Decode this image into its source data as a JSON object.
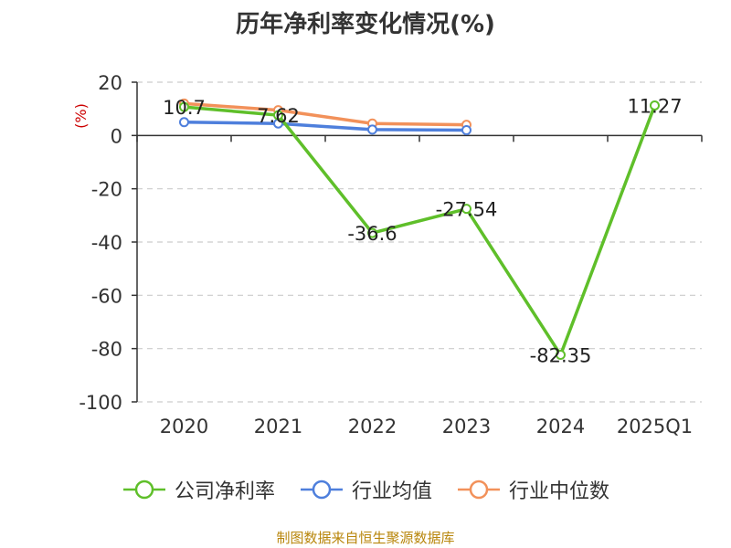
{
  "chart_data": {
    "type": "line",
    "title": "历年净利率变化情况(%)",
    "ylabel": "(%)",
    "xlabel": "",
    "categories": [
      "2020",
      "2021",
      "2022",
      "2023",
      "2024",
      "2025Q1"
    ],
    "ylim": [
      -100,
      20
    ],
    "yticks": [
      20,
      0,
      -20,
      -40,
      -60,
      -80,
      -100
    ],
    "grid": "horizontal-dashed",
    "legend_position": "bottom",
    "series": [
      {
        "name": "公司净利率",
        "color": "#5fbf2a",
        "values": [
          10.7,
          7.62,
          -36.6,
          -27.54,
          -82.35,
          11.27
        ],
        "labels": [
          "10.7",
          "7.62",
          "-36.6",
          "-27.54",
          "-82.35",
          "11.27"
        ]
      },
      {
        "name": "行业均值",
        "color": "#4e7fdc",
        "values": [
          5.0,
          4.5,
          2.2,
          2.0,
          null,
          null
        ]
      },
      {
        "name": "行业中位数",
        "color": "#f2915a",
        "values": [
          12.0,
          9.5,
          4.5,
          4.0,
          null,
          null
        ]
      }
    ]
  },
  "source": "制图数据来自恒生聚源数据库"
}
